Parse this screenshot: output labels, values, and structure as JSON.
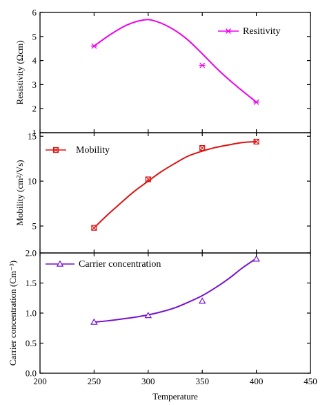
{
  "chart_data": [
    {
      "type": "line",
      "series": [
        {
          "name": "Resitivity",
          "color": "#ee00ee",
          "marker": "asterisk-x",
          "points": [
            [
              250,
              4.6
            ],
            [
              350,
              3.8
            ],
            [
              400,
              2.27
            ]
          ],
          "curve": [
            [
              250,
              4.6
            ],
            [
              265,
              5.08
            ],
            [
              280,
              5.47
            ],
            [
              295,
              5.68
            ],
            [
              305,
              5.66
            ],
            [
              320,
              5.38
            ],
            [
              335,
              4.92
            ],
            [
              350,
              4.28
            ],
            [
              365,
              3.6
            ],
            [
              380,
              3.0
            ],
            [
              400,
              2.27
            ]
          ]
        }
      ],
      "xlim": [
        200,
        450
      ],
      "ylim": [
        1,
        6
      ],
      "yticks": [
        "1",
        "2",
        "3",
        "4",
        "5",
        "6"
      ],
      "ylabel": "Resistivity (Ωcm)",
      "legend": "top-right"
    },
    {
      "type": "line",
      "series": [
        {
          "name": "Mobility",
          "color": "#dd1111",
          "marker": "boxed-x",
          "points": [
            [
              250,
              4.8
            ],
            [
              300,
              10.2
            ],
            [
              350,
              13.7
            ],
            [
              400,
              14.4
            ]
          ],
          "curve": [
            [
              250,
              4.8
            ],
            [
              262,
              6.2
            ],
            [
              275,
              7.6
            ],
            [
              287,
              8.85
            ],
            [
              300,
              10.0
            ],
            [
              312,
              11.05
            ],
            [
              325,
              12.0
            ],
            [
              337,
              12.8
            ],
            [
              350,
              13.35
            ],
            [
              362,
              13.75
            ],
            [
              375,
              14.05
            ],
            [
              387,
              14.3
            ],
            [
              400,
              14.4
            ]
          ]
        }
      ],
      "xlim": [
        200,
        450
      ],
      "ylim": [
        2,
        15.4
      ],
      "yticks": [
        "5",
        "10",
        "15"
      ],
      "ylabel": "Mobility (cm²/Vs)",
      "legend": "top-left"
    },
    {
      "type": "line",
      "series": [
        {
          "name": "Carrier concentration",
          "color": "#7711cc",
          "marker": "triangle-open",
          "points": [
            [
              250,
              0.85
            ],
            [
              300,
              0.96
            ],
            [
              350,
              1.2
            ],
            [
              400,
              1.9
            ]
          ],
          "curve": [
            [
              250,
              0.85
            ],
            [
              262,
              0.87
            ],
            [
              275,
              0.9
            ],
            [
              287,
              0.93
            ],
            [
              300,
              0.97
            ],
            [
              312,
              1.02
            ],
            [
              325,
              1.09
            ],
            [
              337,
              1.18
            ],
            [
              350,
              1.29
            ],
            [
              362,
              1.42
            ],
            [
              375,
              1.58
            ],
            [
              387,
              1.75
            ],
            [
              400,
              1.91
            ]
          ]
        }
      ],
      "xlim": [
        200,
        450
      ],
      "ylim": [
        0,
        2
      ],
      "yticks": [
        "0.0",
        "0.5",
        "1.0",
        "1.5",
        "2.0"
      ],
      "ylabel": "Carrier concentration (Cm⁻³)",
      "legend": "top-left",
      "xticks": [
        "200",
        "250",
        "300",
        "350",
        "400",
        "450"
      ],
      "xlabel": "Temperature"
    }
  ]
}
